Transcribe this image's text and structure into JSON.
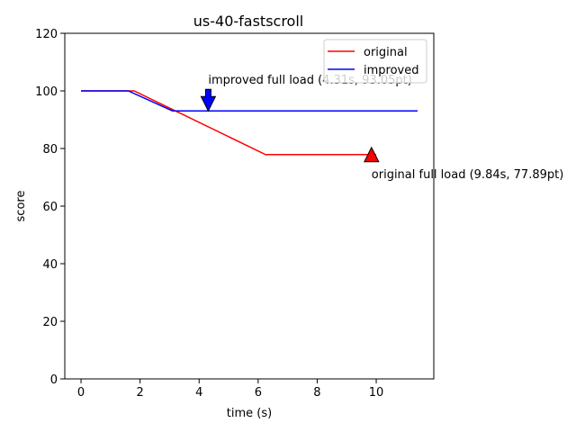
{
  "chart_data": {
    "type": "line",
    "title": "us-40-fastscroll",
    "xlabel": "time (s)",
    "ylabel": "score",
    "xlim": [
      -0.55,
      11.95
    ],
    "ylim": [
      0,
      120
    ],
    "xticks": [
      0,
      2,
      4,
      6,
      8,
      10
    ],
    "yticks": [
      0,
      20,
      40,
      60,
      80,
      100,
      120
    ],
    "grid": false,
    "legend_position": "top-right",
    "series": [
      {
        "name": "original",
        "color": "#ff0000",
        "x": [
          0,
          1.8,
          6.25,
          10.0
        ],
        "y": [
          100,
          100,
          77.89,
          77.89
        ]
      },
      {
        "name": "improved",
        "color": "#0000ff",
        "x": [
          0,
          1.6,
          3.1,
          11.4
        ],
        "y": [
          100,
          100,
          93.05,
          93.05
        ]
      }
    ],
    "annotations": [
      {
        "text": "improved full load (4.31s, 93.05pt)",
        "x": 4.31,
        "y": 93.05,
        "marker": "down-arrow",
        "color": "#0000ff"
      },
      {
        "text": "original full load (9.84s, 77.89pt)",
        "x": 9.84,
        "y": 77.89,
        "marker": "up-triangle",
        "color": "#ff0000"
      }
    ]
  }
}
